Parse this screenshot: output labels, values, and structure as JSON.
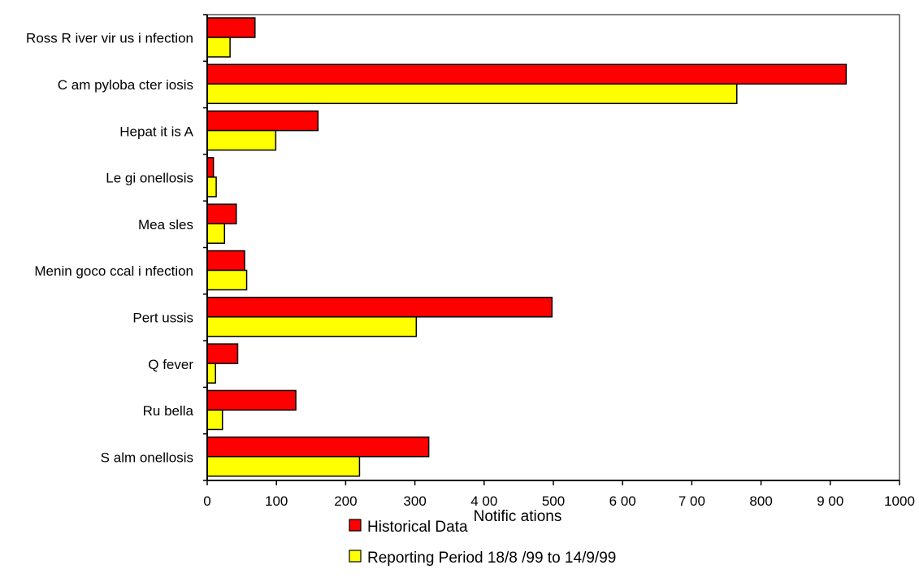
{
  "chart_data": {
    "type": "bar",
    "orientation": "horizontal",
    "categories": [
      "Ross R iver vir us i nfection",
      "C am pyloba cter iosis",
      "Hepat it is A",
      "Le gi onellosis",
      "Mea sles",
      "Menin goco ccal i nfection",
      "Pert ussis",
      "Q fever",
      "Ru bella",
      "S alm onellosis"
    ],
    "series": [
      {
        "name": "Historical Data",
        "color": "#ff0000",
        "values": [
          69,
          923,
          160,
          9,
          42,
          54,
          498,
          44,
          128,
          320
        ]
      },
      {
        "name": "Reporting Period 18/8 /99 to 14/9/99",
        "color": "#ffff00",
        "values": [
          33,
          765,
          99,
          13,
          25,
          57,
          302,
          12,
          22,
          220
        ]
      }
    ],
    "xlabel": "Notific ations",
    "ylabel": "",
    "xlim": [
      0,
      1000
    ],
    "xticks": [
      "0",
      "100",
      "200",
      "300",
      "4 00",
      "500",
      "6 00",
      "7 00",
      "800",
      "9 00",
      "1000"
    ],
    "legend_position": "bottom",
    "grid": false
  }
}
